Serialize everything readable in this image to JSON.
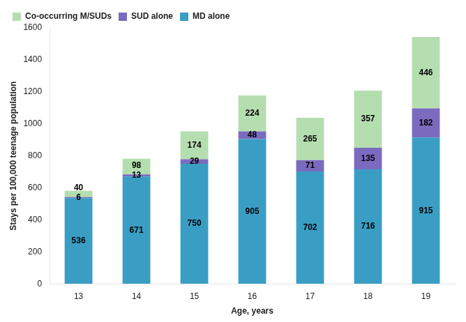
{
  "chart_data": {
    "type": "bar",
    "stacked": true,
    "categories": [
      "13",
      "14",
      "15",
      "16",
      "17",
      "18",
      "19"
    ],
    "series": [
      {
        "name": "MD alone",
        "color": "#3A9EC4",
        "values": [
          536,
          671,
          750,
          905,
          702,
          716,
          915
        ]
      },
      {
        "name": "SUD alone",
        "color": "#7B6BBF",
        "values": [
          6,
          13,
          29,
          48,
          71,
          135,
          182
        ]
      },
      {
        "name": "Co-occurring M/SUDs",
        "color": "#B5DEB0",
        "values": [
          40,
          98,
          174,
          224,
          265,
          357,
          446
        ]
      }
    ],
    "xlabel": "Age, years",
    "ylabel": "Stays per 100,000 teenage population",
    "ylim": [
      0,
      1600
    ],
    "yticks": [
      0,
      200,
      400,
      600,
      800,
      1000,
      1200,
      1400,
      1600
    ],
    "grid": false,
    "legend": "upper left",
    "data_labels": true
  }
}
